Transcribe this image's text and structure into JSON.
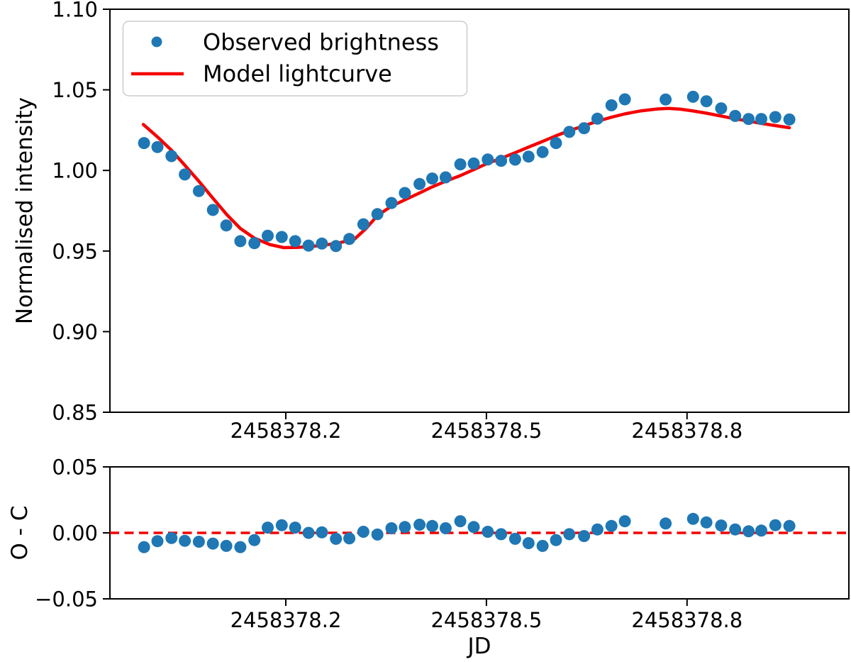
{
  "figure": {
    "background": "#ffffff",
    "spine_color": "#000000"
  },
  "colors": {
    "observed": "#1f77b4",
    "model": "#f40000",
    "zero_line": "#f40000",
    "legend_border": "#cccccc"
  },
  "chart_data": {
    "type": "scatter",
    "title": "",
    "xlabel": "JD",
    "xlim": [
      2458377.937,
      2458379.042
    ],
    "x_ticks": {
      "values": [
        2458378.2,
        2458378.5,
        2458378.8
      ],
      "labels": [
        "2458378.2",
        "2458378.5",
        "2458378.8"
      ]
    },
    "grid": false,
    "top_panel": {
      "ylabel": "Normalised intensity",
      "ylim": [
        0.85,
        1.1
      ],
      "y_ticks": {
        "values": [
          1.1,
          1.05,
          1.0,
          0.95,
          0.9,
          0.85
        ],
        "labels": [
          "1.10",
          "1.05",
          "1.00",
          "0.95",
          "0.90",
          "0.85"
        ]
      },
      "legend": {
        "position": "upper left",
        "entries": [
          {
            "label": "Observed brightness",
            "marker": "dot",
            "color": "#1f77b4"
          },
          {
            "label": "Model lightcurve",
            "marker": "line",
            "color": "#f40000"
          }
        ]
      },
      "observed": {
        "name": "Observed brightness",
        "jd": [
          2458377.988,
          2458378.008,
          2458378.029,
          2458378.049,
          2458378.07,
          2458378.091,
          2458378.111,
          2458378.132,
          2458378.153,
          2458378.173,
          2458378.194,
          2458378.214,
          2458378.234,
          2458378.254,
          2458378.275,
          2458378.295,
          2458378.316,
          2458378.337,
          2458378.358,
          2458378.378,
          2458378.4,
          2458378.419,
          2458378.439,
          2458378.461,
          2458378.481,
          2458378.502,
          2458378.522,
          2458378.543,
          2458378.563,
          2458378.584,
          2458378.604,
          2458378.624,
          2458378.646,
          2458378.666,
          2458378.687,
          2458378.707,
          2458378.768,
          2458378.809,
          2458378.829,
          2458378.851,
          2458378.872,
          2458378.892,
          2458378.911,
          2458378.932,
          2458378.953
        ],
        "intensity": [
          1.017,
          1.0145,
          1.0089,
          0.9975,
          0.9872,
          0.9755,
          0.9659,
          0.9561,
          0.9549,
          0.9595,
          0.9587,
          0.9561,
          0.9534,
          0.9546,
          0.9531,
          0.9575,
          0.9666,
          0.9729,
          0.9798,
          0.986,
          0.9916,
          0.995,
          0.9957,
          1.0038,
          1.0043,
          1.0068,
          1.006,
          1.0067,
          1.0086,
          1.0114,
          1.017,
          1.0239,
          1.0262,
          1.0321,
          1.0404,
          1.0441,
          1.044,
          1.0457,
          1.0429,
          1.0385,
          1.0338,
          1.0319,
          1.0319,
          1.0331,
          1.0316
        ]
      },
      "model": {
        "name": "Model lightcurve",
        "jd": [
          2458377.987,
          2458378.008,
          2458378.029,
          2458378.049,
          2458378.07,
          2458378.091,
          2458378.112,
          2458378.132,
          2458378.153,
          2458378.176,
          2458378.197,
          2458378.218,
          2458378.239,
          2458378.26,
          2458378.282,
          2458378.303,
          2458378.32,
          2458378.337,
          2458378.358,
          2458378.378,
          2458378.4,
          2458378.419,
          2458378.439,
          2458378.461,
          2458378.481,
          2458378.502,
          2458378.522,
          2458378.543,
          2458378.563,
          2458378.584,
          2458378.604,
          2458378.624,
          2458378.646,
          2458378.666,
          2458378.687,
          2458378.707,
          2458378.73,
          2458378.755,
          2458378.772,
          2458378.79,
          2458378.809,
          2458378.829,
          2458378.851,
          2458378.872,
          2458378.892,
          2458378.911,
          2458378.932,
          2458378.953
        ],
        "intensity": [
          1.0285,
          1.0208,
          1.0125,
          1.0032,
          0.9933,
          0.9828,
          0.9725,
          0.964,
          0.958,
          0.954,
          0.9521,
          0.9523,
          0.9529,
          0.9538,
          0.9553,
          0.9575,
          0.964,
          0.972,
          0.9778,
          0.9818,
          0.986,
          0.9898,
          0.9933,
          0.9968,
          1.0005,
          1.0045,
          1.0075,
          1.011,
          1.0145,
          1.018,
          1.0215,
          1.0247,
          1.0277,
          1.0305,
          1.033,
          1.0351,
          1.0369,
          1.0381,
          1.0385,
          1.038,
          1.0369,
          1.0355,
          1.0337,
          1.032,
          1.0306,
          1.0292,
          1.0278,
          1.0265
        ]
      }
    },
    "bottom_panel": {
      "ylabel": "O - C",
      "ylim": [
        -0.05,
        0.05
      ],
      "y_ticks": {
        "values": [
          0.05,
          0.0,
          -0.05
        ],
        "labels": [
          "0.05",
          "0.00",
          "−0.05"
        ]
      },
      "zero_line": 0.0,
      "residuals": {
        "name": "O - C",
        "jd": [
          2458377.988,
          2458378.008,
          2458378.029,
          2458378.049,
          2458378.07,
          2458378.091,
          2458378.111,
          2458378.132,
          2458378.153,
          2458378.173,
          2458378.194,
          2458378.214,
          2458378.234,
          2458378.254,
          2458378.275,
          2458378.295,
          2458378.316,
          2458378.337,
          2458378.358,
          2458378.378,
          2458378.4,
          2458378.419,
          2458378.439,
          2458378.461,
          2458378.481,
          2458378.502,
          2458378.522,
          2458378.543,
          2458378.563,
          2458378.584,
          2458378.604,
          2458378.624,
          2458378.646,
          2458378.666,
          2458378.687,
          2458378.707,
          2458378.768,
          2458378.809,
          2458378.829,
          2458378.851,
          2458378.872,
          2458378.892,
          2458378.911,
          2458378.932,
          2458378.953
        ],
        "value": [
          -0.0108,
          -0.0063,
          -0.0039,
          -0.006,
          -0.0067,
          -0.0081,
          -0.0099,
          -0.0108,
          -0.0055,
          0.004,
          0.0058,
          0.004,
          0.0,
          0.0004,
          -0.0045,
          -0.0042,
          0.0008,
          -0.0013,
          0.0035,
          0.0044,
          0.0062,
          0.0052,
          0.0035,
          0.0088,
          0.0044,
          0.0008,
          -0.001,
          -0.0045,
          -0.0078,
          -0.0099,
          -0.0055,
          -0.001,
          -0.0024,
          0.0026,
          0.0052,
          0.0088,
          0.0071,
          0.0106,
          0.0079,
          0.0056,
          0.0026,
          0.0012,
          0.0017,
          0.0058,
          0.0052
        ]
      }
    }
  }
}
